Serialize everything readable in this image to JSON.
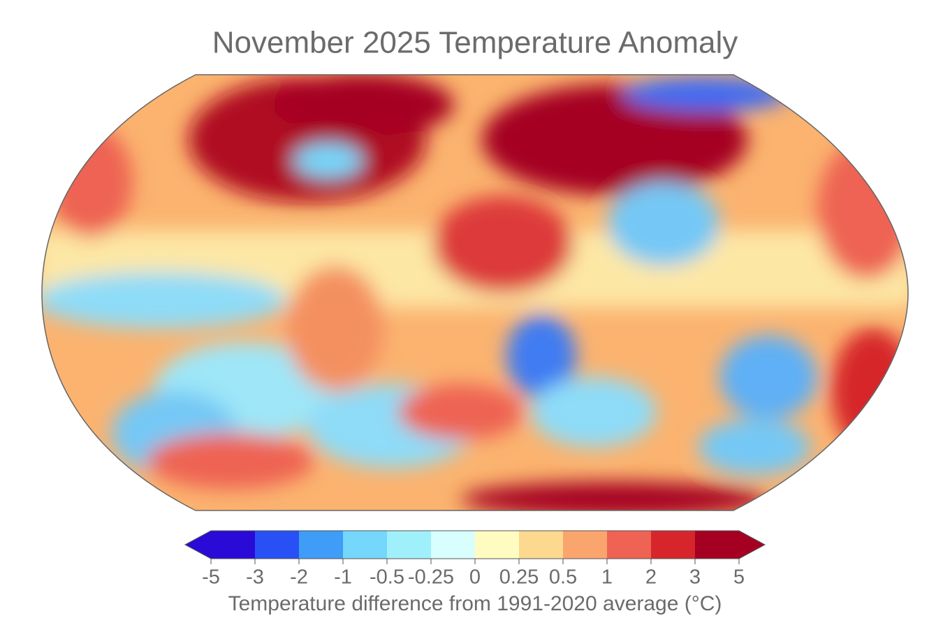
{
  "title": "November 2025 Temperature Anomaly",
  "colorbar": {
    "label": "Temperature difference from 1991-2020 average (°C)",
    "ticks": [
      -5,
      -3,
      -2,
      -1,
      -0.5,
      -0.25,
      0,
      0.25,
      0.5,
      1,
      2,
      3,
      5
    ],
    "colors": [
      "#2a0ad6",
      "#2850f5",
      "#3f9cf7",
      "#75d7fb",
      "#a0f0fb",
      "#d8fefe",
      "#fefcc0",
      "#fcd98f",
      "#fba56e",
      "#ee6353",
      "#d6262c",
      "#a50022"
    ]
  }
}
